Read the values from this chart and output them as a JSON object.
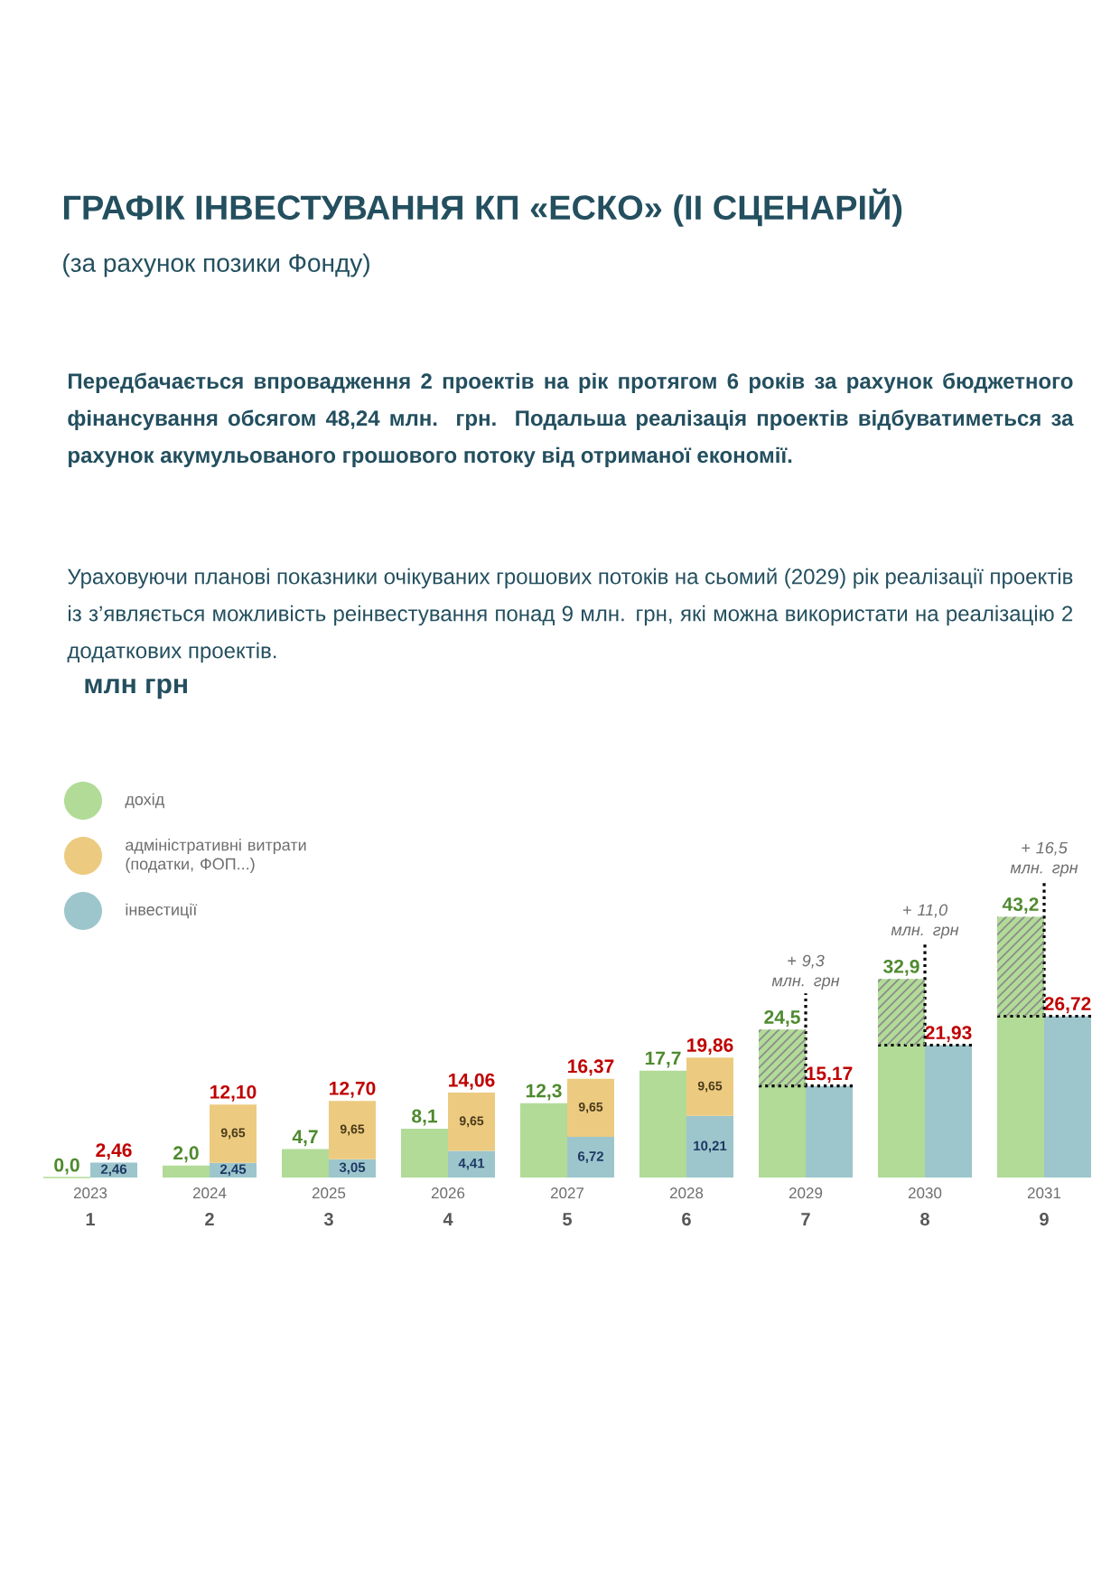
{
  "chart_data": [
    {
      "type": "bar",
      "title": "ГРАФІК ІНВЕСТУВАННЯ КП «ЕСКО» (II СЦЕНАРІЙ)",
      "subtitle": "(за рахунок позики Фонду)",
      "categories": [
        "2023",
        "2024",
        "2025",
        "2026",
        "2027",
        "2028",
        "2029",
        "2030",
        "2031"
      ],
      "series": [
        {
          "name": "дохід",
          "color": "#b1db97",
          "values": [
            0.0,
            2.0,
            4.7,
            8.1,
            12.3,
            17.7,
            24.5,
            32.9,
            43.2
          ],
          "value_labels": [
            "0,0",
            "2,0",
            "4,7",
            "8,1",
            "12,3",
            "17,7",
            "24,5",
            "32,9",
            "43,2"
          ]
        }
      ],
      "legend": "top left",
      "annotations": [
        "Передбачається впровадження 2 проектів на рік протягом 6 років за рахунок бюджетного фінансування обсягом 48,24 млн. грн. Подальша реалізація проектів відбуватиметься за рахунок акумульованого грошового потоку від отриманої економії.",
        "Ураховуючи планові показники очікуваних грошових потоків на сьомий (2029) рік реалізації проектів із з’являється можливість реінвестування понад 9 млн. грн, які можна використати на реалізацію 2 додаткових проектів.",
        "млн грн",
        "1",
        "2",
        "3",
        "4",
        "5",
        "6",
        "7",
        "8",
        "9"
      ]
    },
    {
      "type": "bar",
      "categories": [
        "2023",
        "2024",
        "2025",
        "2026",
        "2027",
        "2028",
        "2029",
        "2030",
        "2031"
      ],
      "tick_labels": false,
      "stacked": true,
      "series": [
        {
          "name": "інвестиції",
          "color": "#9cc6cc",
          "values": [
            2.46,
            2.45,
            3.05,
            4.41,
            6.72,
            10.21,
            15.17,
            21.93,
            26.72
          ],
          "value_labels": [
            "2,46",
            "2,45",
            "3,05",
            "4,41",
            "6,72",
            "10,21",
            null,
            null,
            null
          ]
        },
        {
          "name": "адміністративні витрати (податки, ФОП...)",
          "color": "#eccb80",
          "values": [
            null,
            9.65,
            9.65,
            9.65,
            9.65,
            9.65,
            null,
            null,
            null
          ],
          "value_labels": [
            null,
            "9,65",
            "9,65",
            "9,65",
            "9,65",
            "9,65",
            null,
            null,
            null
          ]
        }
      ],
      "totals": [
        "2,46",
        "12,10",
        "12,70",
        "14,06",
        "16,37",
        "19,86",
        "15,17",
        "21,93",
        "26,72"
      ],
      "legend": "top left",
      "annotations": [
        {
          "text": "+ 9,3 млн. грн",
          "x": "2029",
          "y": 15.17
        },
        {
          "text": "+ 11,0 млн. грн",
          "x": "2030",
          "y": 21.93
        },
        {
          "text": "+ 16,5 млн. грн",
          "x": "2031",
          "y": 26.72
        }
      ]
    }
  ]
}
